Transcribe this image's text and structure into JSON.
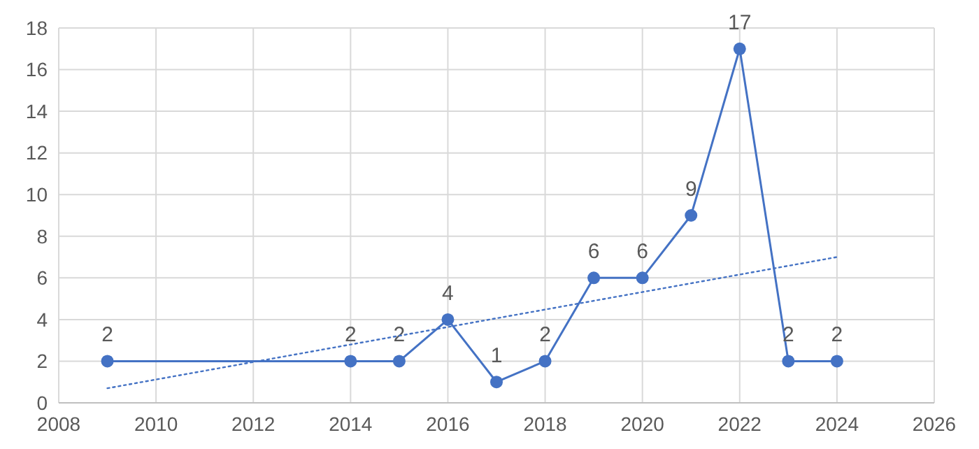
{
  "chart_data": {
    "type": "line",
    "x": [
      2009,
      2014,
      2015,
      2016,
      2017,
      2018,
      2019,
      2020,
      2021,
      2022,
      2023,
      2024
    ],
    "series": [
      {
        "color": "#4472c4",
        "marker": "circle",
        "line_style": "solid",
        "values": [
          2,
          2,
          2,
          4,
          1,
          2,
          6,
          6,
          9,
          17,
          2,
          2
        ],
        "value_labels": [
          "2",
          "2",
          "2",
          "4",
          "1",
          "2",
          "6",
          "6",
          "9",
          "17",
          "2",
          "2"
        ]
      },
      {
        "type": "line",
        "color": "#4472c4",
        "marker": "none",
        "line_style": "dotted",
        "x": [
          2009,
          2024
        ],
        "values": [
          0.7,
          7.0
        ]
      }
    ],
    "xlim": [
      2008,
      2026
    ],
    "xticks": [
      2008,
      2010,
      2012,
      2014,
      2016,
      2018,
      2020,
      2022,
      2024,
      2026
    ],
    "ylim": [
      0,
      18
    ],
    "yticks": [
      0,
      2,
      4,
      6,
      8,
      10,
      12,
      14,
      16,
      18
    ],
    "grid": true
  }
}
